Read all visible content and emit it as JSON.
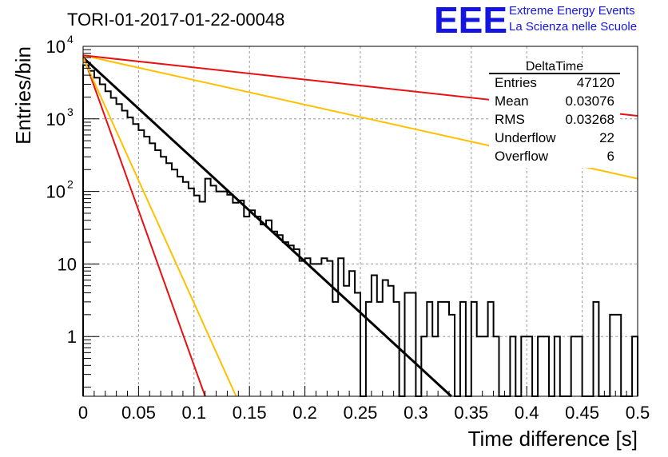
{
  "chart_data": {
    "type": "histogram",
    "title": "TORI-01-2017-01-22-00048",
    "xlabel": "Time difference [s]",
    "ylabel": "Entries/bin",
    "xlim": [
      0,
      0.5
    ],
    "ylim": [
      0.15,
      10000
    ],
    "yscale": "log",
    "grid": true,
    "x_ticks": [
      "0",
      "0.05",
      "0.1",
      "0.15",
      "0.2",
      "0.25",
      "0.3",
      "0.35",
      "0.4",
      "0.45",
      "0.5"
    ],
    "y_ticks": [
      {
        "value": 1,
        "label": "1"
      },
      {
        "value": 10,
        "label": "10"
      },
      {
        "value": 100,
        "label": "10",
        "exponent": "2"
      },
      {
        "value": 1000,
        "label": "10",
        "exponent": "3"
      },
      {
        "value": 10000,
        "label": "10",
        "exponent": "4"
      }
    ],
    "histogram": {
      "bin_width": 0.005,
      "values": [
        5500,
        4600,
        3700,
        3000,
        2400,
        1950,
        1600,
        1300,
        1050,
        850,
        700,
        570,
        460,
        370,
        300,
        245,
        200,
        160,
        135,
        110,
        88,
        72,
        150,
        120,
        100,
        100,
        90,
        70,
        75,
        45,
        55,
        45,
        35,
        40,
        28,
        25,
        20,
        18,
        16,
        11,
        12,
        10,
        10,
        12,
        11,
        3,
        12,
        5,
        8,
        4,
        0,
        3,
        7,
        3,
        6,
        5,
        3,
        0,
        4,
        4,
        0,
        1,
        3,
        1,
        3,
        3,
        2,
        0,
        3,
        0,
        3,
        1,
        1,
        3,
        1,
        0,
        0,
        1,
        0,
        1,
        1,
        0,
        1,
        1,
        0,
        1,
        0,
        0,
        1,
        1,
        0,
        0,
        3,
        0,
        0,
        2,
        2,
        0,
        0,
        1
      ]
    },
    "series": [
      {
        "color": "#000000",
        "type": "exponential-fit",
        "points": [
          [
            0,
            7000
          ],
          [
            0.332,
            0.15
          ]
        ]
      },
      {
        "color": "#e81010",
        "type": "exponential",
        "points": [
          [
            0,
            7500
          ],
          [
            0.11,
            0.15
          ]
        ]
      },
      {
        "color": "#ffc000",
        "type": "exponential",
        "points": [
          [
            0,
            7000
          ],
          [
            0.138,
            0.15
          ]
        ]
      },
      {
        "color": "#ffc000",
        "type": "exponential",
        "points": [
          [
            0,
            7500
          ],
          [
            0.5,
            150
          ]
        ]
      },
      {
        "color": "#e81010",
        "type": "exponential",
        "points": [
          [
            0,
            7500
          ],
          [
            0.5,
            1100
          ]
        ]
      }
    ],
    "stats_box": {
      "title": "DeltaTime",
      "rows": [
        {
          "label": "Entries",
          "value": "47120"
        },
        {
          "label": "Mean",
          "value": "0.03076"
        },
        {
          "label": "RMS",
          "value": "0.03268"
        },
        {
          "label": "Underflow",
          "value": "22"
        },
        {
          "label": "Overflow",
          "value": "6"
        }
      ]
    },
    "logo": {
      "text": "EEE",
      "line1": "Extreme Energy Events",
      "line2": "La Scienza nelle Scuole"
    }
  }
}
